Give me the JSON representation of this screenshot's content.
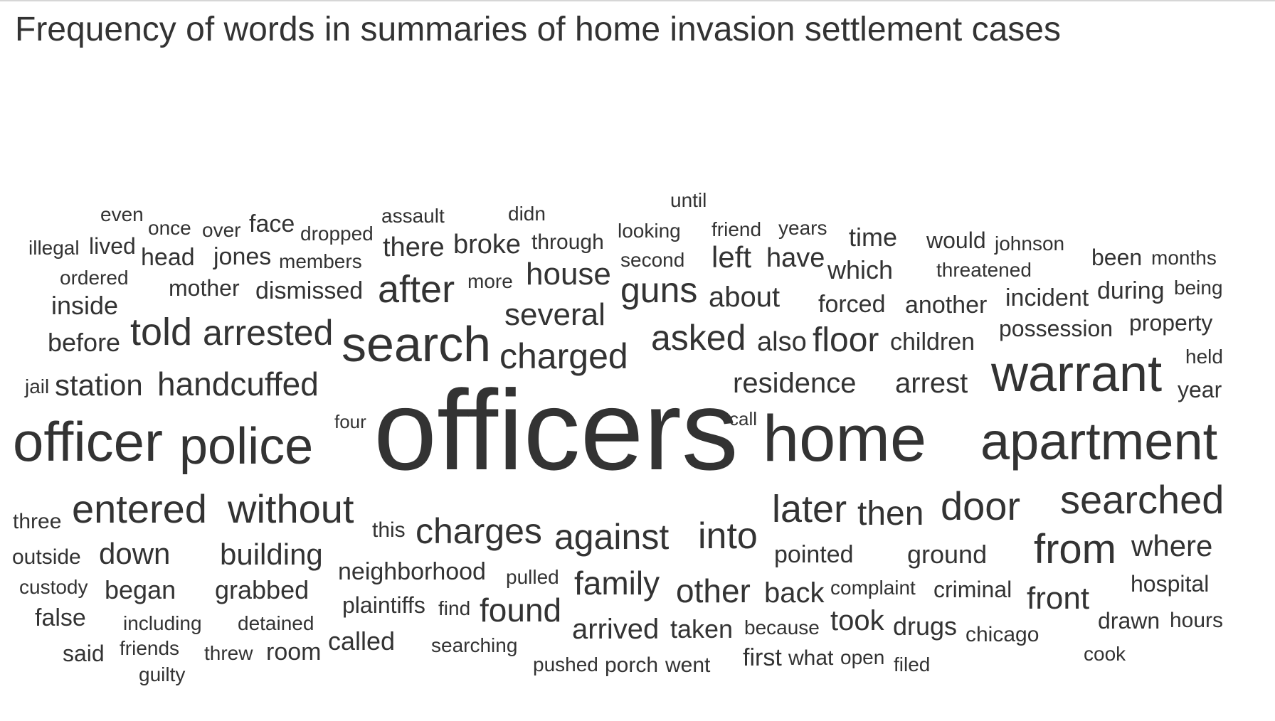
{
  "title": "Frequency of words in summaries of home invasion settlement cases",
  "colors": {
    "text": "#333333",
    "rule": "#d6d6d6",
    "background": "#ffffff"
  },
  "chart_data": {
    "type": "wordcloud",
    "title": "Frequency of words in summaries of home invasion settlement cases",
    "words": [
      {
        "text": "officers",
        "weight": 160
      },
      {
        "text": "home",
        "weight": 90
      },
      {
        "text": "officer",
        "weight": 78
      },
      {
        "text": "apartment",
        "weight": 72
      },
      {
        "text": "warrant",
        "weight": 70
      },
      {
        "text": "police",
        "weight": 70
      },
      {
        "text": "search",
        "weight": 68
      },
      {
        "text": "entered",
        "weight": 57
      },
      {
        "text": "from",
        "weight": 57
      },
      {
        "text": "without",
        "weight": 55
      },
      {
        "text": "later",
        "weight": 54
      },
      {
        "text": "door",
        "weight": 54
      },
      {
        "text": "searched",
        "weight": 54
      },
      {
        "text": "after",
        "weight": 54
      },
      {
        "text": "told",
        "weight": 52
      },
      {
        "text": "charged",
        "weight": 50
      },
      {
        "text": "guns",
        "weight": 50
      },
      {
        "text": "into",
        "weight": 50
      },
      {
        "text": "charges",
        "weight": 48
      },
      {
        "text": "arrested",
        "weight": 48
      },
      {
        "text": "against",
        "weight": 48
      },
      {
        "text": "asked",
        "weight": 48
      },
      {
        "text": "handcuffed",
        "weight": 46
      },
      {
        "text": "found",
        "weight": 46
      },
      {
        "text": "then",
        "weight": 46
      },
      {
        "text": "floor",
        "weight": 46
      },
      {
        "text": "house",
        "weight": 44
      },
      {
        "text": "family",
        "weight": 44
      },
      {
        "text": "other",
        "weight": 44
      },
      {
        "text": "station",
        "weight": 42
      },
      {
        "text": "several",
        "weight": 42
      },
      {
        "text": "down",
        "weight": 42
      },
      {
        "text": "building",
        "weight": 42
      },
      {
        "text": "where",
        "weight": 42
      },
      {
        "text": "arrived",
        "weight": 40
      },
      {
        "text": "residence",
        "weight": 40
      },
      {
        "text": "arrest",
        "weight": 40
      },
      {
        "text": "about",
        "weight": 40
      },
      {
        "text": "left",
        "weight": 40
      },
      {
        "text": "front",
        "weight": 40
      },
      {
        "text": "back",
        "weight": 40
      },
      {
        "text": "there",
        "weight": 38
      },
      {
        "text": "broke",
        "weight": 38
      },
      {
        "text": "also",
        "weight": 38
      },
      {
        "text": "have",
        "weight": 38
      },
      {
        "text": "which",
        "weight": 36
      },
      {
        "text": "took",
        "weight": 38
      },
      {
        "text": "taken",
        "weight": 36
      },
      {
        "text": "drugs",
        "weight": 36
      },
      {
        "text": "time",
        "weight": 34
      },
      {
        "text": "called",
        "weight": 34
      },
      {
        "text": "grabbed",
        "weight": 34
      },
      {
        "text": "began",
        "weight": 34
      },
      {
        "text": "neighborhood",
        "weight": 34
      },
      {
        "text": "ground",
        "weight": 34
      },
      {
        "text": "pointed",
        "weight": 34
      },
      {
        "text": "room",
        "weight": 34
      },
      {
        "text": "before",
        "weight": 34
      },
      {
        "text": "inside",
        "weight": 34
      },
      {
        "text": "dismissed",
        "weight": 32
      },
      {
        "text": "jones",
        "weight": 32
      },
      {
        "text": "head",
        "weight": 32
      },
      {
        "text": "face",
        "weight": 32
      },
      {
        "text": "mother",
        "weight": 32
      },
      {
        "text": "forced",
        "weight": 32
      },
      {
        "text": "another",
        "weight": 32
      },
      {
        "text": "incident",
        "weight": 32
      },
      {
        "text": "during",
        "weight": 32
      },
      {
        "text": "children",
        "weight": 32
      },
      {
        "text": "false",
        "weight": 32
      },
      {
        "text": "outside",
        "weight": 30
      },
      {
        "text": "three",
        "weight": 30
      },
      {
        "text": "plaintiffs",
        "weight": 30
      },
      {
        "text": "would",
        "weight": 30
      },
      {
        "text": "through",
        "weight": 30
      },
      {
        "text": "hospital",
        "weight": 30
      },
      {
        "text": "drawn",
        "weight": 30
      },
      {
        "text": "criminal",
        "weight": 30
      },
      {
        "text": "said",
        "weight": 30
      },
      {
        "text": "possession",
        "weight": 30
      },
      {
        "text": "property",
        "weight": 30
      },
      {
        "text": "been",
        "weight": 30
      },
      {
        "text": "this",
        "weight": 30
      },
      {
        "text": "threw",
        "weight": 28
      },
      {
        "text": "detained",
        "weight": 28
      },
      {
        "text": "custody",
        "weight": 28
      },
      {
        "text": "including",
        "weight": 28
      },
      {
        "text": "searching",
        "weight": 28
      },
      {
        "text": "months",
        "weight": 28
      },
      {
        "text": "years",
        "weight": 28
      },
      {
        "text": "second",
        "weight": 28
      },
      {
        "text": "looking",
        "weight": 28
      },
      {
        "text": "members",
        "weight": 28
      },
      {
        "text": "ordered",
        "weight": 28
      },
      {
        "text": "dropped",
        "weight": 28
      },
      {
        "text": "lived",
        "weight": 28
      },
      {
        "text": "illegal",
        "weight": 28
      },
      {
        "text": "over",
        "weight": 28
      },
      {
        "text": "once",
        "weight": 28
      },
      {
        "text": "even",
        "weight": 28
      },
      {
        "text": "assault",
        "weight": 28
      },
      {
        "text": "didn",
        "weight": 28
      },
      {
        "text": "until",
        "weight": 28
      },
      {
        "text": "friend",
        "weight": 28
      },
      {
        "text": "more",
        "weight": 28
      },
      {
        "text": "jail",
        "weight": 28
      },
      {
        "text": "held",
        "weight": 28
      },
      {
        "text": "year",
        "weight": 28
      },
      {
        "text": "being",
        "weight": 28
      },
      {
        "text": "johnson",
        "weight": 28
      },
      {
        "text": "threatened",
        "weight": 28
      },
      {
        "text": "four",
        "weight": 28
      },
      {
        "text": "call",
        "weight": 28
      },
      {
        "text": "pulled",
        "weight": 28
      },
      {
        "text": "find",
        "weight": 28
      },
      {
        "text": "complaint",
        "weight": 28
      },
      {
        "text": "hours",
        "weight": 28
      },
      {
        "text": "because",
        "weight": 28
      },
      {
        "text": "first",
        "weight": 30
      },
      {
        "text": "what",
        "weight": 28
      },
      {
        "text": "open",
        "weight": 28
      },
      {
        "text": "filed",
        "weight": 28
      },
      {
        "text": "chicago",
        "weight": 28
      },
      {
        "text": "cook",
        "weight": 28
      },
      {
        "text": "friends",
        "weight": 28
      },
      {
        "text": "guilty",
        "weight": 28
      },
      {
        "text": "pushed",
        "weight": 28
      },
      {
        "text": "porch",
        "weight": 28
      },
      {
        "text": "went",
        "weight": 28
      }
    ]
  }
}
